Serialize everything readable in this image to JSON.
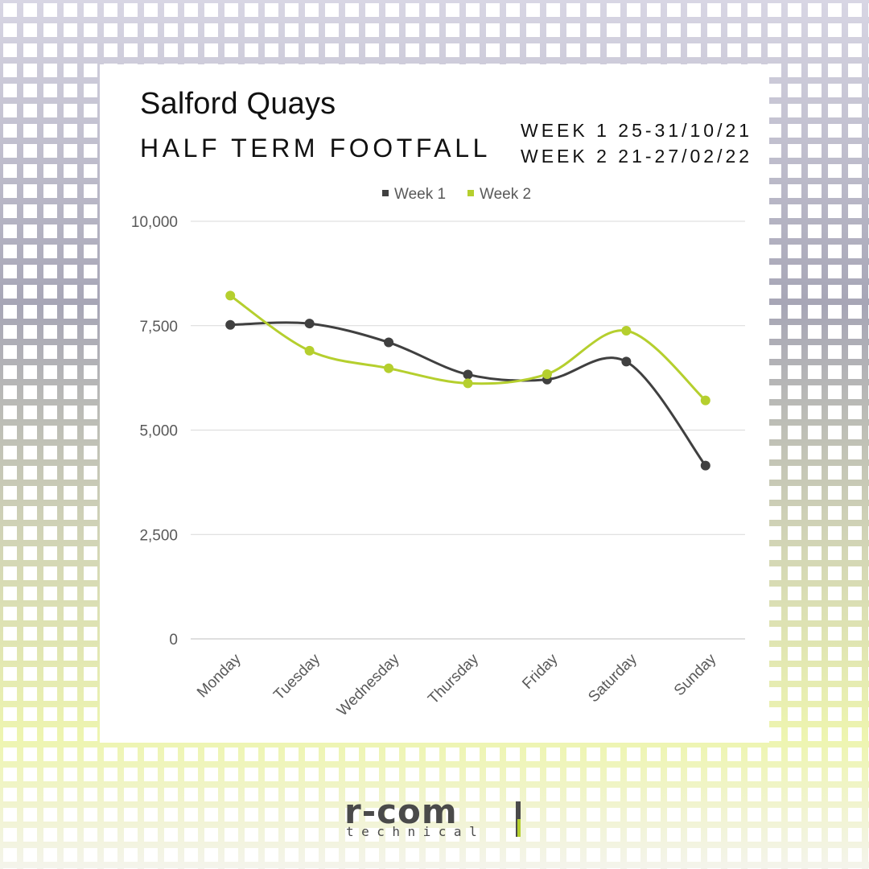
{
  "header": {
    "title": "Salford Quays",
    "subtitle": "HALF TERM FOOTFALL",
    "week1_range": "WEEK 1 25-31/10/21",
    "week2_range": "WEEK 2 21-27/02/22"
  },
  "logo": {
    "main": "r-com",
    "sub": "technical"
  },
  "colors": {
    "week1": "#404040",
    "week2": "#b5cf2e",
    "grid": "#d9d9d9",
    "axis": "#bfbfbf",
    "tick_text": "#595959"
  },
  "chart_data": {
    "type": "line",
    "smooth": true,
    "categories": [
      "Monday",
      "Tuesday",
      "Wednesday",
      "Thursday",
      "Friday",
      "Saturday",
      "Sunday"
    ],
    "series": [
      {
        "name": "Week 1",
        "color": "#404040",
        "values": [
          7520,
          7550,
          7100,
          6330,
          6210,
          6640,
          4150
        ]
      },
      {
        "name": "Week 2",
        "color": "#b5cf2e",
        "values": [
          8220,
          6900,
          6480,
          6120,
          6340,
          7380,
          5710
        ]
      }
    ],
    "ylim": [
      0,
      10000
    ],
    "yticks": [
      0,
      2500,
      5000,
      7500,
      10000
    ],
    "ytick_labels": [
      "0",
      "2,500",
      "5,000",
      "7,500",
      "10,000"
    ],
    "grid": true,
    "legend_position": "top-center",
    "xlabel": "",
    "ylabel": ""
  }
}
